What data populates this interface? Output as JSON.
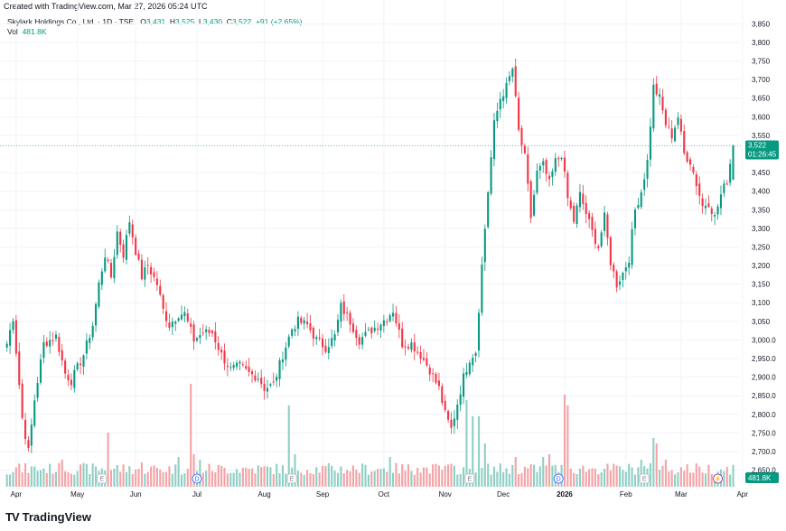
{
  "header": {
    "created_note": "Created with TradingView.com, Mar 27, 2026 05:24 UTC"
  },
  "legend": {
    "title": "Skylark Holdings Co., Ltd. · 1D · TSE",
    "o_label": "O",
    "o_value": "3,431",
    "h_label": "H",
    "h_value": "3,525",
    "l_label": "L",
    "l_value": "3,430",
    "c_label": "C",
    "c_value": "3,522",
    "change": "+91 (+2.65%)",
    "vol_label": "Vol",
    "vol_value": "481.8K"
  },
  "brand": {
    "logo": "TV",
    "name": "TradingView"
  },
  "colors": {
    "up": "#089981",
    "down": "#f23645",
    "up_vol": "#8fcfc4",
    "down_vol": "#f4a3a6",
    "grid": "#f0f3fa",
    "price_line": "#089981"
  },
  "chart_data": {
    "type": "candlestick",
    "ylim": [
      2615,
      3880
    ],
    "y_ticks": [
      {
        "v": 3850,
        "label": "3,850"
      },
      {
        "v": 3800,
        "label": "3,800"
      },
      {
        "v": 3750,
        "label": "3,750"
      },
      {
        "v": 3700,
        "label": "3,700"
      },
      {
        "v": 3650,
        "label": "3,650"
      },
      {
        "v": 3600,
        "label": "3,600"
      },
      {
        "v": 3550,
        "label": "3,550"
      },
      {
        "v": 3450,
        "label": "3,450"
      },
      {
        "v": 3400,
        "label": "3,400"
      },
      {
        "v": 3350,
        "label": "3,350"
      },
      {
        "v": 3300,
        "label": "3,300"
      },
      {
        "v": 3250,
        "label": "3,250"
      },
      {
        "v": 3200,
        "label": "3,200"
      },
      {
        "v": 3150,
        "label": "3,150"
      },
      {
        "v": 3100,
        "label": "3,100"
      },
      {
        "v": 3050,
        "label": "3,050"
      },
      {
        "v": 3000,
        "label": "3,000.0"
      },
      {
        "v": 2950,
        "label": "2,950.0"
      },
      {
        "v": 2900,
        "label": "2,900.0"
      },
      {
        "v": 2850,
        "label": "2,850.0"
      },
      {
        "v": 2800,
        "label": "2,800.0"
      },
      {
        "v": 2750,
        "label": "2,750.0"
      },
      {
        "v": 2700,
        "label": "2,700.0"
      },
      {
        "v": 2650,
        "label": "2,650.0"
      }
    ],
    "x_ticks": [
      {
        "i": 3,
        "label": "Apr"
      },
      {
        "i": 23,
        "label": "May"
      },
      {
        "i": 42,
        "label": "Jun"
      },
      {
        "i": 62,
        "label": "Jul"
      },
      {
        "i": 84,
        "label": "Aug"
      },
      {
        "i": 103,
        "label": "Sep"
      },
      {
        "i": 123,
        "label": "Oct"
      },
      {
        "i": 143,
        "label": "Nov"
      },
      {
        "i": 162,
        "label": "Dec"
      },
      {
        "i": 182,
        "label": "2026"
      },
      {
        "i": 202,
        "label": "Feb"
      },
      {
        "i": 220,
        "label": "Mar"
      },
      {
        "i": 240,
        "label": "Apr"
      }
    ],
    "last_price": {
      "value": 3522,
      "label": "3,522",
      "countdown": "01:26:45"
    },
    "last_volume": {
      "label": "481.8K"
    },
    "events": [
      {
        "i": 31,
        "label": "E"
      },
      {
        "i": 62,
        "label": "D"
      },
      {
        "i": 93,
        "label": "E"
      },
      {
        "i": 151,
        "label": "E"
      },
      {
        "i": 180,
        "label": "D"
      },
      {
        "i": 208,
        "label": "E"
      },
      {
        "i": 232,
        "label": "⚡"
      }
    ],
    "anchors": [
      [
        0,
        2990
      ],
      [
        2,
        3060
      ],
      [
        5,
        2790
      ],
      [
        7,
        2700
      ],
      [
        9,
        2840
      ],
      [
        12,
        2990
      ],
      [
        16,
        3010
      ],
      [
        19,
        2910
      ],
      [
        21,
        2890
      ],
      [
        25,
        2960
      ],
      [
        28,
        3040
      ],
      [
        30,
        3150
      ],
      [
        32,
        3230
      ],
      [
        34,
        3170
      ],
      [
        36,
        3290
      ],
      [
        38,
        3230
      ],
      [
        40,
        3320
      ],
      [
        42,
        3240
      ],
      [
        44,
        3170
      ],
      [
        46,
        3200
      ],
      [
        49,
        3150
      ],
      [
        51,
        3080
      ],
      [
        53,
        3040
      ],
      [
        56,
        3070
      ],
      [
        58,
        3070
      ],
      [
        61,
        3000
      ],
      [
        64,
        3020
      ],
      [
        67,
        3020
      ],
      [
        70,
        2960
      ],
      [
        73,
        2920
      ],
      [
        76,
        2930
      ],
      [
        79,
        2910
      ],
      [
        82,
        2900
      ],
      [
        84,
        2870
      ],
      [
        87,
        2880
      ],
      [
        90,
        2960
      ],
      [
        93,
        3030
      ],
      [
        95,
        3050
      ],
      [
        98,
        3040
      ],
      [
        101,
        3000
      ],
      [
        104,
        2980
      ],
      [
        107,
        3010
      ],
      [
        109,
        3090
      ],
      [
        112,
        3050
      ],
      [
        115,
        3000
      ],
      [
        118,
        3020
      ],
      [
        121,
        3040
      ],
      [
        124,
        3060
      ],
      [
        126,
        3080
      ],
      [
        129,
        2990
      ],
      [
        132,
        2990
      ],
      [
        135,
        2960
      ],
      [
        138,
        2920
      ],
      [
        141,
        2870
      ],
      [
        143,
        2800
      ],
      [
        145,
        2760
      ],
      [
        147,
        2830
      ],
      [
        149,
        2900
      ],
      [
        151,
        2950
      ],
      [
        153,
        2970
      ],
      [
        155,
        3200
      ],
      [
        157,
        3400
      ],
      [
        159,
        3580
      ],
      [
        161,
        3650
      ],
      [
        163,
        3680
      ],
      [
        165,
        3730
      ],
      [
        167,
        3560
      ],
      [
        169,
        3490
      ],
      [
        171,
        3330
      ],
      [
        173,
        3450
      ],
      [
        175,
        3470
      ],
      [
        177,
        3420
      ],
      [
        179,
        3480
      ],
      [
        181,
        3500
      ],
      [
        183,
        3380
      ],
      [
        185,
        3320
      ],
      [
        187,
        3390
      ],
      [
        189,
        3340
      ],
      [
        191,
        3290
      ],
      [
        193,
        3250
      ],
      [
        195,
        3330
      ],
      [
        197,
        3210
      ],
      [
        199,
        3150
      ],
      [
        201,
        3180
      ],
      [
        203,
        3220
      ],
      [
        205,
        3350
      ],
      [
        207,
        3400
      ],
      [
        209,
        3480
      ],
      [
        211,
        3680
      ],
      [
        213,
        3650
      ],
      [
        215,
        3580
      ],
      [
        217,
        3550
      ],
      [
        219,
        3600
      ],
      [
        221,
        3500
      ],
      [
        223,
        3480
      ],
      [
        225,
        3420
      ],
      [
        227,
        3360
      ],
      [
        229,
        3370
      ],
      [
        231,
        3330
      ],
      [
        233,
        3390
      ],
      [
        235,
        3430
      ],
      [
        237,
        3522
      ]
    ],
    "volume_spikes": [
      [
        18,
        0.5
      ],
      [
        33,
        1.0
      ],
      [
        36,
        0.4
      ],
      [
        44,
        0.45
      ],
      [
        56,
        0.55
      ],
      [
        60,
        1.9
      ],
      [
        61,
        0.6
      ],
      [
        63,
        0.5
      ],
      [
        92,
        1.5
      ],
      [
        94,
        0.6
      ],
      [
        125,
        0.55
      ],
      [
        134,
        0.35
      ],
      [
        150,
        1.6
      ],
      [
        152,
        1.3
      ],
      [
        154,
        1.3
      ],
      [
        156,
        0.8
      ],
      [
        166,
        0.55
      ],
      [
        175,
        0.55
      ],
      [
        177,
        0.6
      ],
      [
        182,
        1.7
      ],
      [
        183,
        1.5
      ],
      [
        207,
        0.5
      ],
      [
        211,
        0.9
      ],
      [
        212,
        0.8
      ],
      [
        215,
        0.5
      ]
    ]
  }
}
